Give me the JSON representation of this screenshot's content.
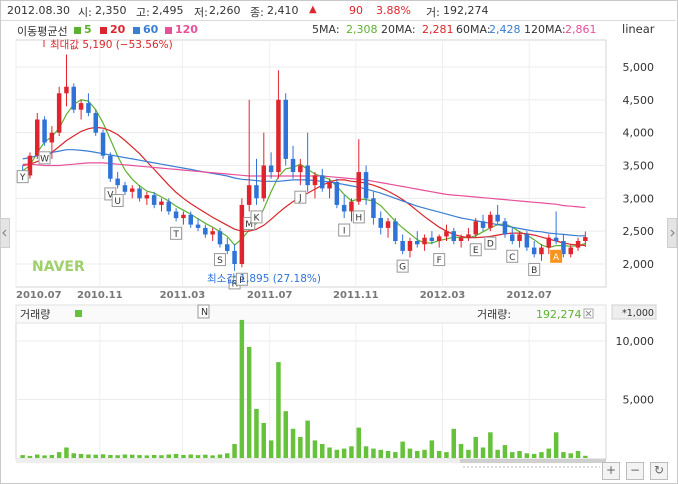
{
  "header": {
    "date": "2012.08.30",
    "open_label": "시:",
    "open": "2,350",
    "high_label": "고:",
    "high": "2,495",
    "low_label": "저:",
    "low": "2,260",
    "close_label": "종:",
    "close": "2,410",
    "change": "90",
    "change_pct": "3.88%",
    "volume_label": "거:",
    "volume": "192,274",
    "up_arrow": "▲"
  },
  "ma_legend": {
    "title": "이동평균선",
    "items": [
      {
        "label": "5",
        "color": "#5db130"
      },
      {
        "label": "20",
        "color": "#d9262c"
      },
      {
        "label": "60",
        "color": "#3a7ed4"
      },
      {
        "label": "120",
        "color": "#e8509a"
      }
    ],
    "values": [
      {
        "label": "5MA:",
        "value": "2,308",
        "color": "#5db130"
      },
      {
        "label": "20MA:",
        "value": "2,281",
        "color": "#d9262c"
      },
      {
        "label": "60MA:",
        "value": "2,428",
        "color": "#3a7ed4"
      },
      {
        "label": "120MA:",
        "value": "2,861",
        "color": "#e8509a"
      }
    ]
  },
  "scale_mode": "linear",
  "watermark": "NAVER",
  "price_axis": [
    "5,000",
    "4,500",
    "4,000",
    "3,500",
    "3,000",
    "2,500",
    "2,000"
  ],
  "date_axis": [
    "2010.07",
    "2010.11",
    "2011.03",
    "2011.07",
    "2011.11",
    "2012.03",
    "2012.07"
  ],
  "max_annotation": "최대값 5,190 (−53.56%)",
  "min_annotation": "최소값 1,895 (27.18%)",
  "volume_panel": {
    "title": "거래량",
    "legend_label": "거래량:",
    "legend_value": "192,274",
    "multiplier": "*1,000",
    "axis": [
      "10,000",
      "5,000"
    ],
    "marker_n": "N"
  },
  "controls": [
    "+",
    "−",
    "↻"
  ],
  "colors": {
    "up": "#e0242d",
    "down": "#2f73d8",
    "volume": "#66c23a",
    "ma5": "#5db130",
    "ma20": "#d9262c",
    "ma60": "#3a7ed4",
    "ma120": "#e8509a",
    "marker_a": "#f7941d"
  },
  "chart_data": [
    {
      "type": "candlestick",
      "title": "",
      "ylim": [
        1800,
        5300
      ],
      "y_ticks": [
        2000,
        2500,
        3000,
        3500,
        4000,
        4500,
        5000
      ],
      "x_ticks": [
        "2010.07",
        "2010.11",
        "2011.03",
        "2011.07",
        "2011.11",
        "2012.03",
        "2012.07"
      ],
      "candles": [
        {
          "o": 3400,
          "h": 3500,
          "l": 3300,
          "c": 3350
        },
        {
          "o": 3350,
          "h": 3700,
          "l": 3300,
          "c": 3650
        },
        {
          "o": 3650,
          "h": 4300,
          "l": 3600,
          "c": 4200
        },
        {
          "o": 4200,
          "h": 4250,
          "l": 3800,
          "c": 3850
        },
        {
          "o": 3850,
          "h": 4100,
          "l": 3600,
          "c": 4000
        },
        {
          "o": 4000,
          "h": 4700,
          "l": 3950,
          "c": 4600
        },
        {
          "o": 4600,
          "h": 5190,
          "l": 4400,
          "c": 4700
        },
        {
          "o": 4700,
          "h": 4750,
          "l": 4300,
          "c": 4350
        },
        {
          "o": 4350,
          "h": 4500,
          "l": 4200,
          "c": 4450
        },
        {
          "o": 4450,
          "h": 4600,
          "l": 4250,
          "c": 4300
        },
        {
          "o": 4300,
          "h": 4350,
          "l": 3950,
          "c": 4000
        },
        {
          "o": 4000,
          "h": 4050,
          "l": 3600,
          "c": 3650
        },
        {
          "o": 3650,
          "h": 3700,
          "l": 3250,
          "c": 3300
        },
        {
          "o": 3300,
          "h": 3400,
          "l": 3150,
          "c": 3200
        },
        {
          "o": 3200,
          "h": 3250,
          "l": 3050,
          "c": 3100
        },
        {
          "o": 3100,
          "h": 3200,
          "l": 3000,
          "c": 3150
        },
        {
          "o": 3150,
          "h": 3200,
          "l": 2950,
          "c": 3000
        },
        {
          "o": 3000,
          "h": 3100,
          "l": 2900,
          "c": 3050
        },
        {
          "o": 3050,
          "h": 3100,
          "l": 2850,
          "c": 2900
        },
        {
          "o": 2900,
          "h": 3000,
          "l": 2800,
          "c": 2950
        },
        {
          "o": 2950,
          "h": 3000,
          "l": 2750,
          "c": 2800
        },
        {
          "o": 2800,
          "h": 2850,
          "l": 2650,
          "c": 2700
        },
        {
          "o": 2700,
          "h": 2800,
          "l": 2600,
          "c": 2750
        },
        {
          "o": 2750,
          "h": 2800,
          "l": 2550,
          "c": 2600
        },
        {
          "o": 2600,
          "h": 2700,
          "l": 2500,
          "c": 2550
        },
        {
          "o": 2550,
          "h": 2600,
          "l": 2400,
          "c": 2450
        },
        {
          "o": 2450,
          "h": 2550,
          "l": 2350,
          "c": 2500
        },
        {
          "o": 2500,
          "h": 2550,
          "l": 2250,
          "c": 2300
        },
        {
          "o": 2300,
          "h": 2400,
          "l": 2150,
          "c": 2200
        },
        {
          "o": 2200,
          "h": 2300,
          "l": 1895,
          "c": 2000
        },
        {
          "o": 2000,
          "h": 3000,
          "l": 1950,
          "c": 2900
        },
        {
          "o": 2900,
          "h": 4500,
          "l": 2800,
          "c": 3200
        },
        {
          "o": 3200,
          "h": 3600,
          "l": 2900,
          "c": 3000
        },
        {
          "o": 3000,
          "h": 4000,
          "l": 2950,
          "c": 3500
        },
        {
          "o": 3500,
          "h": 3700,
          "l": 3300,
          "c": 3400
        },
        {
          "o": 3400,
          "h": 4950,
          "l": 3300,
          "c": 4500
        },
        {
          "o": 4500,
          "h": 4600,
          "l": 3500,
          "c": 3600
        },
        {
          "o": 3600,
          "h": 3800,
          "l": 3300,
          "c": 3400
        },
        {
          "o": 3400,
          "h": 3600,
          "l": 3200,
          "c": 3500
        },
        {
          "o": 3500,
          "h": 4000,
          "l": 3100,
          "c": 3200
        },
        {
          "o": 3200,
          "h": 3400,
          "l": 3000,
          "c": 3350
        },
        {
          "o": 3350,
          "h": 3450,
          "l": 3100,
          "c": 3150
        },
        {
          "o": 3150,
          "h": 3300,
          "l": 3000,
          "c": 3250
        },
        {
          "o": 3250,
          "h": 3300,
          "l": 2850,
          "c": 2900
        },
        {
          "o": 2900,
          "h": 3050,
          "l": 2700,
          "c": 2800
        },
        {
          "o": 2800,
          "h": 3000,
          "l": 2650,
          "c": 2950
        },
        {
          "o": 2950,
          "h": 3900,
          "l": 2900,
          "c": 3400
        },
        {
          "o": 3400,
          "h": 3500,
          "l": 2900,
          "c": 3000
        },
        {
          "o": 3000,
          "h": 3100,
          "l": 2600,
          "c": 2700
        },
        {
          "o": 2700,
          "h": 2800,
          "l": 2450,
          "c": 2550
        },
        {
          "o": 2550,
          "h": 2700,
          "l": 2400,
          "c": 2650
        },
        {
          "o": 2650,
          "h": 2700,
          "l": 2300,
          "c": 2350
        },
        {
          "o": 2350,
          "h": 2450,
          "l": 2150,
          "c": 2200
        },
        {
          "o": 2200,
          "h": 2400,
          "l": 2100,
          "c": 2350
        },
        {
          "o": 2350,
          "h": 2500,
          "l": 2250,
          "c": 2300
        },
        {
          "o": 2300,
          "h": 2450,
          "l": 2200,
          "c": 2400
        },
        {
          "o": 2400,
          "h": 2500,
          "l": 2300,
          "c": 2350
        },
        {
          "o": 2350,
          "h": 2450,
          "l": 2250,
          "c": 2420
        },
        {
          "o": 2420,
          "h": 2600,
          "l": 2350,
          "c": 2500
        },
        {
          "o": 2500,
          "h": 2550,
          "l": 2300,
          "c": 2350
        },
        {
          "o": 2350,
          "h": 2450,
          "l": 2250,
          "c": 2400
        },
        {
          "o": 2400,
          "h": 2550,
          "l": 2350,
          "c": 2450
        },
        {
          "o": 2450,
          "h": 2700,
          "l": 2400,
          "c": 2650
        },
        {
          "o": 2650,
          "h": 2750,
          "l": 2500,
          "c": 2550
        },
        {
          "o": 2550,
          "h": 2800,
          "l": 2500,
          "c": 2750
        },
        {
          "o": 2750,
          "h": 2900,
          "l": 2600,
          "c": 2650
        },
        {
          "o": 2650,
          "h": 2700,
          "l": 2400,
          "c": 2450
        },
        {
          "o": 2450,
          "h": 2550,
          "l": 2300,
          "c": 2350
        },
        {
          "o": 2350,
          "h": 2500,
          "l": 2250,
          "c": 2450
        },
        {
          "o": 2450,
          "h": 2500,
          "l": 2200,
          "c": 2250
        },
        {
          "o": 2250,
          "h": 2350,
          "l": 2100,
          "c": 2150
        },
        {
          "o": 2150,
          "h": 2300,
          "l": 2050,
          "c": 2250
        },
        {
          "o": 2250,
          "h": 2450,
          "l": 2150,
          "c": 2400
        },
        {
          "o": 2400,
          "h": 2800,
          "l": 2300,
          "c": 2350
        },
        {
          "o": 2350,
          "h": 2450,
          "l": 2100,
          "c": 2150
        },
        {
          "o": 2150,
          "h": 2300,
          "l": 2100,
          "c": 2250
        },
        {
          "o": 2250,
          "h": 2400,
          "l": 2200,
          "c": 2350
        },
        {
          "o": 2350,
          "h": 2495,
          "l": 2260,
          "c": 2410
        }
      ],
      "series": [
        {
          "name": "5",
          "values": [
            3420,
            3500,
            3700,
            3860,
            3940,
            4070,
            4280,
            4430,
            4500,
            4480,
            4350,
            4150,
            3900,
            3640,
            3430,
            3290,
            3190,
            3110,
            3080,
            3020,
            2960,
            2880,
            2820,
            2760,
            2690,
            2620,
            2560,
            2490,
            2420,
            2290,
            2380,
            2520,
            2620,
            2840,
            3100,
            3330,
            3450,
            3470,
            3520,
            3440,
            3370,
            3330,
            3290,
            3180,
            3060,
            2960,
            2990,
            2980,
            2960,
            2890,
            2770,
            2650,
            2550,
            2460,
            2370,
            2320,
            2320,
            2360,
            2380,
            2410,
            2400,
            2400,
            2430,
            2490,
            2550,
            2600,
            2610,
            2560,
            2490,
            2440,
            2370,
            2290,
            2250,
            2280,
            2280,
            2270,
            2280,
            2310
          ]
        },
        {
          "name": "20",
          "values": [
            3500,
            3520,
            3560,
            3620,
            3700,
            3790,
            3880,
            3950,
            4020,
            4060,
            4080,
            4070,
            4030,
            3970,
            3880,
            3780,
            3680,
            3560,
            3440,
            3320,
            3200,
            3090,
            3000,
            2920,
            2850,
            2780,
            2710,
            2650,
            2590,
            2530,
            2500,
            2500,
            2530,
            2590,
            2680,
            2780,
            2870,
            2950,
            3020,
            3080,
            3140,
            3200,
            3250,
            3280,
            3280,
            3260,
            3250,
            3230,
            3200,
            3160,
            3110,
            3050,
            2980,
            2900,
            2810,
            2720,
            2640,
            2560,
            2500,
            2450,
            2420,
            2400,
            2400,
            2410,
            2420,
            2440,
            2460,
            2470,
            2470,
            2460,
            2440,
            2410,
            2380,
            2350,
            2320,
            2300,
            2290,
            2281
          ]
        },
        {
          "name": "60",
          "values": [
            3600,
            3620,
            3650,
            3680,
            3700,
            3720,
            3740,
            3740,
            3730,
            3720,
            3700,
            3680,
            3660,
            3640,
            3620,
            3600,
            3580,
            3560,
            3540,
            3520,
            3500,
            3480,
            3460,
            3440,
            3420,
            3400,
            3380,
            3360,
            3340,
            3310,
            3290,
            3280,
            3270,
            3260,
            3260,
            3260,
            3270,
            3280,
            3280,
            3280,
            3270,
            3260,
            3250,
            3230,
            3210,
            3190,
            3170,
            3140,
            3110,
            3080,
            3040,
            3000,
            2960,
            2920,
            2880,
            2850,
            2820,
            2790,
            2760,
            2730,
            2700,
            2680,
            2660,
            2640,
            2620,
            2600,
            2580,
            2560,
            2540,
            2520,
            2500,
            2490,
            2470,
            2460,
            2450,
            2440,
            2430,
            2428
          ]
        },
        {
          "name": "120",
          "values": [
            3520,
            3520,
            3510,
            3500,
            3500,
            3500,
            3510,
            3520,
            3530,
            3540,
            3540,
            3540,
            3530,
            3520,
            3510,
            3500,
            3490,
            3480,
            3470,
            3460,
            3450,
            3440,
            3430,
            3420,
            3410,
            3400,
            3390,
            3380,
            3370,
            3360,
            3350,
            3340,
            3340,
            3340,
            3340,
            3340,
            3340,
            3340,
            3340,
            3340,
            3340,
            3340,
            3330,
            3320,
            3310,
            3300,
            3290,
            3280,
            3260,
            3240,
            3220,
            3200,
            3180,
            3160,
            3140,
            3120,
            3100,
            3080,
            3060,
            3050,
            3040,
            3030,
            3020,
            3010,
            3000,
            2990,
            2980,
            2970,
            2960,
            2950,
            2940,
            2930,
            2920,
            2910,
            2890,
            2880,
            2870,
            2861
          ]
        }
      ],
      "annotations": [
        "최대값 5,190 (−53.56%)",
        "최소값 1,895 (27.18%)"
      ],
      "pattern_markers": [
        "Y",
        "W",
        "V",
        "U",
        "T",
        "S",
        "R",
        "P",
        "M",
        "K",
        "J",
        "I",
        "H",
        "G",
        "F",
        "E",
        "D",
        "C",
        "B",
        "A"
      ]
    },
    {
      "type": "bar",
      "title": "거래량",
      "unit": "*1,000",
      "ylim": [
        0,
        12000
      ],
      "y_ticks": [
        5000,
        10000
      ],
      "values": [
        250,
        180,
        300,
        220,
        260,
        500,
        900,
        400,
        350,
        300,
        280,
        320,
        260,
        240,
        300,
        280,
        250,
        220,
        260,
        240,
        300,
        350,
        260,
        300,
        250,
        280,
        220,
        300,
        400,
        1200,
        11800,
        9500,
        4200,
        3000,
        1500,
        8200,
        4000,
        2500,
        1800,
        3200,
        1500,
        1200,
        900,
        700,
        800,
        1000,
        2600,
        1000,
        800,
        700,
        600,
        500,
        1400,
        800,
        600,
        700,
        1500,
        600,
        500,
        2500,
        1200,
        700,
        1800,
        900,
        2200,
        700,
        1100,
        500,
        600,
        400,
        350,
        500,
        800,
        2200,
        500,
        400,
        600,
        192
      ]
    }
  ]
}
